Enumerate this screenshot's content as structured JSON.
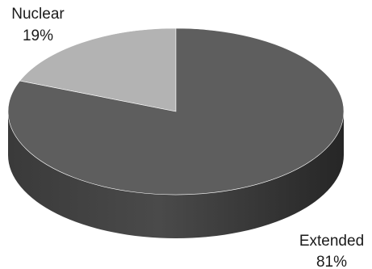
{
  "chart_data": {
    "type": "pie",
    "style": "3d",
    "categories": [
      "Nuclear",
      "Extended"
    ],
    "values": [
      19,
      81
    ],
    "value_labels": [
      "19%",
      "81%"
    ],
    "colors": {
      "Nuclear": "#b3b3b3",
      "Extended": "#5e5e5e"
    },
    "legend": "none",
    "title": ""
  }
}
